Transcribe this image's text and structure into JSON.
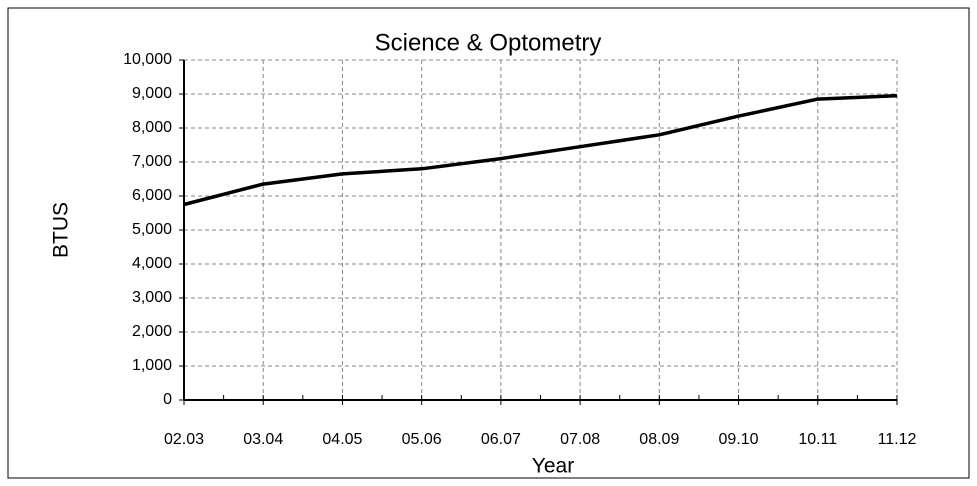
{
  "chart_data": {
    "type": "line",
    "title": "Science & Optometry",
    "x_label": "Year",
    "y_label": "BTUS",
    "categories": [
      "02.03",
      "03.04",
      "04.05",
      "05.06",
      "06.07",
      "07.08",
      "08.09",
      "09.10",
      "10.11",
      "11.12"
    ],
    "series": [
      {
        "name": "BTUS",
        "color": "#000000",
        "values": [
          5750,
          6350,
          6650,
          6800,
          7100,
          7450,
          7800,
          8350,
          8850,
          8950
        ]
      }
    ],
    "ylim": [
      0,
      10000
    ],
    "yticks": [
      0,
      {
        "value": 1000,
        "label": "1,000"
      },
      {
        "value": 2000,
        "label": "2,000"
      },
      {
        "value": 3000,
        "label": "3,000"
      },
      {
        "value": 4000,
        "label": "4,000"
      },
      {
        "value": 5000,
        "label": "5,000"
      },
      {
        "value": 6000,
        "label": "6,000"
      },
      {
        "value": 7000,
        "label": "7,000"
      },
      {
        "value": 8000,
        "label": "8,000"
      },
      {
        "value": 9000,
        "label": "9,000"
      },
      {
        "value": 10000,
        "label": "10,000"
      }
    ],
    "grid": true
  }
}
